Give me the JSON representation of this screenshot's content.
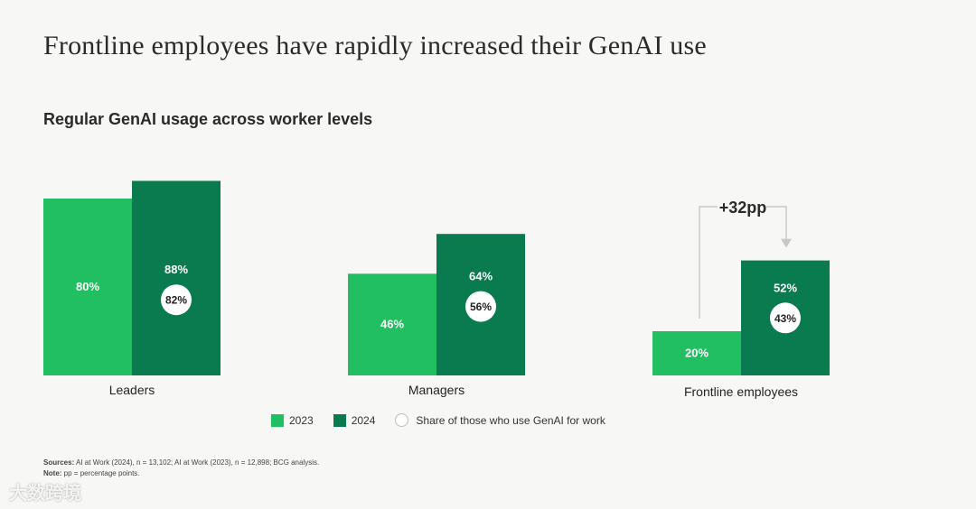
{
  "title": "Frontline employees have rapidly increased their GenAI use",
  "chart_data": {
    "type": "bar",
    "title": "Regular GenAI usage across worker levels",
    "categories": [
      "Leaders",
      "Managers",
      "Frontline employees"
    ],
    "series": [
      {
        "name": "2023",
        "values": [
          80,
          46,
          20
        ],
        "labels": [
          "80%",
          "46%",
          "20%"
        ],
        "color": "#21bf61"
      },
      {
        "name": "2024",
        "values": [
          88,
          64,
          52
        ],
        "labels": [
          "88%",
          "64%",
          "52%"
        ],
        "color": "#0a7a4f"
      }
    ],
    "share_of_genai_work_users": {
      "name": "Share of those who use GenAI for work",
      "values": [
        82,
        56,
        43
      ],
      "labels": [
        "82%",
        "56%",
        "43%"
      ]
    },
    "annotation": {
      "text": "+32pp",
      "category": "Frontline employees"
    },
    "ylim": [
      0,
      100
    ]
  },
  "legend": {
    "item_2023": "2023",
    "item_2024": "2024",
    "item_share": "Share of those who use GenAI for work"
  },
  "footer": {
    "sources_label": "Sources:",
    "sources_text": " AI at Work (2024), n = 13,102; AI at Work (2023), n = 12,898; BCG analysis.",
    "note_label": "Note:",
    "note_text": " pp = percentage points."
  },
  "watermark": "大数跨境",
  "colors": {
    "c2023": "#21bf61",
    "c2024": "#0a7a4f"
  }
}
